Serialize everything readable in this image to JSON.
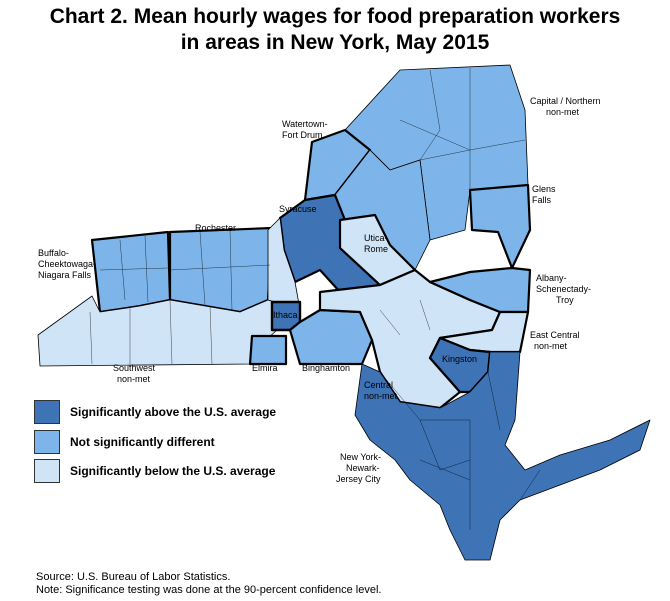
{
  "title_line1": "Chart 2. Mean hourly wages for food preparation workers",
  "title_line2": "in areas in New York, May 2015",
  "colors": {
    "above": "#3e73b6",
    "not_significant": "#7db5ea",
    "below": "#cfe4f7",
    "border": "#000000"
  },
  "legend": [
    {
      "key": "above",
      "label": "Significantly above the U.S. average"
    },
    {
      "key": "not_significant",
      "label": "Not significantly different"
    },
    {
      "key": "below",
      "label": "Significantly below the U.S. average"
    }
  ],
  "areas": {
    "capital_northern": {
      "line1": "Capital / Northern",
      "line2": "non-met",
      "category": "not_significant"
    },
    "watertown": {
      "line1": "Watertown-",
      "line2": "Fort Drum",
      "category": "not_significant"
    },
    "glens_falls": {
      "line1": "Glens",
      "line2": "Falls",
      "category": "not_significant"
    },
    "syracuse": {
      "line1": "Syracuse",
      "category": "above"
    },
    "rochester": {
      "line1": "Rochester",
      "category": "not_significant"
    },
    "utica": {
      "line1": "Utica-",
      "line2": "Rome",
      "category": "below"
    },
    "buffalo": {
      "line1": "Buffalo-",
      "line2": "Cheektowaga-",
      "line3": "Niagara Falls",
      "category": "not_significant"
    },
    "albany": {
      "line1": "Albany-",
      "line2": "Schenectady-",
      "line3": "Troy",
      "category": "not_significant"
    },
    "ithaca": {
      "line1": "Ithaca",
      "category": "above"
    },
    "east_central": {
      "line1": "East Central",
      "line2": "non-met",
      "category": "below"
    },
    "southwest": {
      "line1": "Southwest",
      "line2": "non-met",
      "category": "below"
    },
    "elmira": {
      "line1": "Elmira",
      "category": "not_significant"
    },
    "binghamton": {
      "line1": "Binghamton",
      "category": "not_significant"
    },
    "kingston": {
      "line1": "Kingston",
      "category": "above"
    },
    "central": {
      "line1": "Central",
      "line2": "non-met",
      "category": "below"
    },
    "nyc": {
      "line1": "New York-",
      "line2": "Newark-",
      "line3": "Jersey City",
      "category": "above"
    }
  },
  "source": "Source: U.S. Bureau of Labor Statistics.",
  "note": "Note: Significance testing was done at the 90-percent confidence level."
}
